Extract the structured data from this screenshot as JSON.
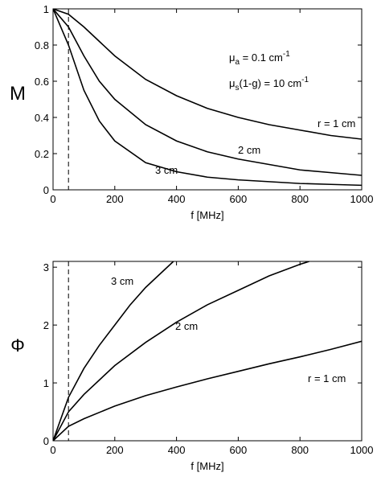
{
  "chart_data": [
    {
      "type": "line",
      "xlabel": "f [MHz]",
      "ylabel": "M",
      "xlim": [
        0,
        1000
      ],
      "xticks": [
        0,
        200,
        400,
        600,
        800,
        1000
      ],
      "ylim": [
        0,
        1
      ],
      "yticks": [
        0,
        0.2,
        0.4,
        0.6,
        0.8,
        1
      ],
      "vline": 50,
      "annotations": [
        [
          {
            "t": "μ"
          },
          {
            "t": "a",
            "sub": true
          },
          {
            "t": " = 0.1 cm"
          },
          {
            "t": "-1",
            "sup": true
          }
        ],
        [
          {
            "t": "μ"
          },
          {
            "t": "s",
            "sub": true
          },
          {
            "t": "(1-g) = 10 cm"
          },
          {
            "t": "-1",
            "sup": true
          }
        ]
      ],
      "series": [
        {
          "name": "r = 1 cm",
          "color": "#000000",
          "x": [
            0,
            50,
            100,
            150,
            200,
            300,
            400,
            500,
            600,
            700,
            800,
            900,
            1000
          ],
          "values": [
            1,
            0.97,
            0.9,
            0.82,
            0.74,
            0.61,
            0.52,
            0.45,
            0.4,
            0.36,
            0.33,
            0.3,
            0.28
          ]
        },
        {
          "name": "2 cm",
          "color": "#000000",
          "x": [
            0,
            50,
            100,
            150,
            200,
            300,
            400,
            500,
            600,
            700,
            800,
            900,
            1000
          ],
          "values": [
            1,
            0.9,
            0.74,
            0.6,
            0.5,
            0.36,
            0.27,
            0.21,
            0.17,
            0.14,
            0.11,
            0.095,
            0.08
          ]
        },
        {
          "name": "3 cm",
          "color": "#000000",
          "x": [
            0,
            50,
            100,
            150,
            200,
            300,
            400,
            500,
            600,
            700,
            800,
            900,
            1000
          ],
          "values": [
            1,
            0.8,
            0.55,
            0.38,
            0.27,
            0.15,
            0.1,
            0.07,
            0.055,
            0.045,
            0.035,
            0.03,
            0.025
          ]
        }
      ]
    },
    {
      "type": "line",
      "xlabel": "f [MHz]",
      "ylabel": "Φ",
      "xlim": [
        0,
        1000
      ],
      "xticks": [
        0,
        200,
        400,
        600,
        800,
        1000
      ],
      "ylim": [
        0,
        3.1
      ],
      "yticks": [
        0,
        1,
        2,
        3
      ],
      "vline": 50,
      "series": [
        {
          "name": "3 cm",
          "color": "#000000",
          "x": [
            0,
            50,
            100,
            150,
            200,
            250,
            300,
            350,
            390
          ],
          "values": [
            0,
            0.75,
            1.25,
            1.65,
            2.0,
            2.35,
            2.65,
            2.9,
            3.1
          ]
        },
        {
          "name": "2 cm",
          "color": "#000000",
          "x": [
            0,
            50,
            100,
            200,
            300,
            400,
            500,
            600,
            700,
            800,
            830
          ],
          "values": [
            0,
            0.5,
            0.8,
            1.3,
            1.7,
            2.05,
            2.35,
            2.6,
            2.85,
            3.05,
            3.1
          ]
        },
        {
          "name": "r = 1 cm",
          "color": "#000000",
          "x": [
            0,
            50,
            100,
            200,
            300,
            400,
            500,
            600,
            700,
            800,
            900,
            1000
          ],
          "values": [
            0,
            0.25,
            0.38,
            0.6,
            0.78,
            0.93,
            1.07,
            1.2,
            1.33,
            1.45,
            1.58,
            1.72
          ]
        }
      ]
    }
  ]
}
